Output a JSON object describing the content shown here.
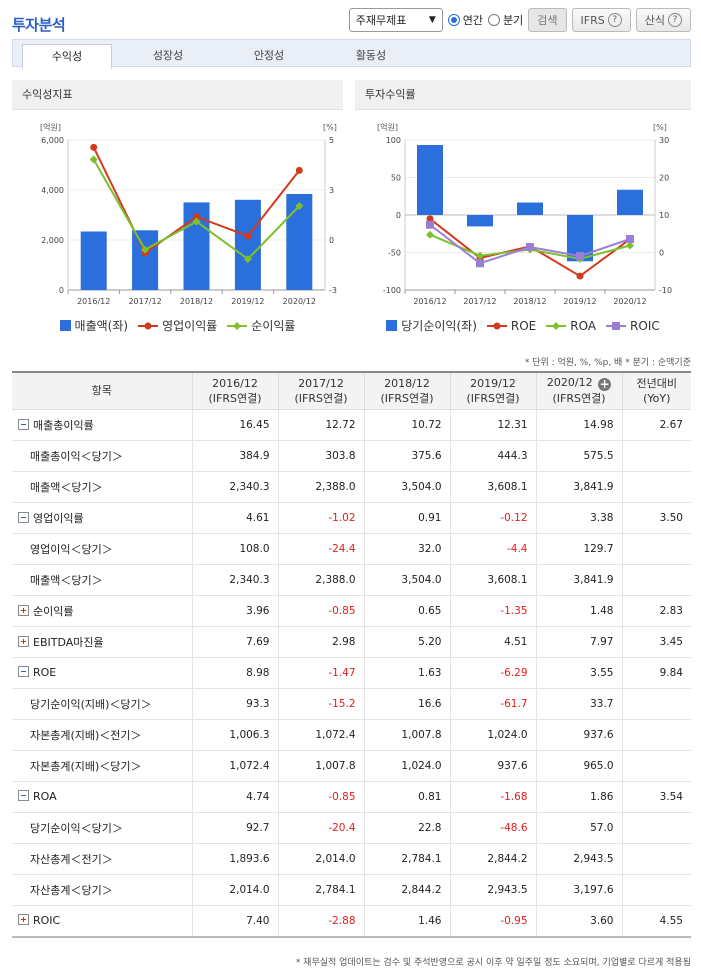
{
  "header": {
    "title": "투자분석",
    "select_value": "주재무제표",
    "radio_annual": "연간",
    "radio_quarter": "분기",
    "search_label": "검색",
    "ifrs_label": "IFRS",
    "formula_label": "산식"
  },
  "tabs": [
    {
      "label": "수익성"
    },
    {
      "label": "성장성"
    },
    {
      "label": "안정성"
    },
    {
      "label": "활동성"
    }
  ],
  "chart_left": {
    "title": "수익성지표",
    "left_unit": "[억원]",
    "right_unit": "[%]",
    "left_ticks": [
      "6,000",
      "4,000",
      "2,000",
      "0"
    ],
    "right_ticks": [
      "5",
      "3",
      "0",
      "-3"
    ],
    "categories": [
      "2016/12",
      "2017/12",
      "2018/12",
      "2019/12",
      "2020/12"
    ],
    "legend": [
      "매출액(좌)",
      "영업이익률",
      "순이익률"
    ],
    "colors": {
      "bar": "#2a6fdc",
      "op": "#d23a1e",
      "net": "#7cc12c"
    }
  },
  "chart_right": {
    "title": "투자수익률",
    "left_unit": "[억원]",
    "right_unit": "[%]",
    "left_ticks": [
      "100",
      "50",
      "0",
      "-50",
      "-100"
    ],
    "right_ticks": [
      "30",
      "20",
      "10",
      "0",
      "-10"
    ],
    "categories": [
      "2016/12",
      "2017/12",
      "2018/12",
      "2019/12",
      "2020/12"
    ],
    "legend": [
      "당기순이익(좌)",
      "ROE",
      "ROA",
      "ROIC"
    ],
    "colors": {
      "bar": "#2a6fdc",
      "roe": "#d23a1e",
      "roa": "#7cc12c",
      "roic": "#9b7fd6"
    }
  },
  "chart_data": [
    {
      "type": "bar",
      "title": "수익성지표",
      "categories": [
        "2016/12",
        "2017/12",
        "2018/12",
        "2019/12",
        "2020/12"
      ],
      "ylim": [
        0,
        6000
      ],
      "y2lim": [
        -3,
        5
      ],
      "series": [
        {
          "name": "매출액(좌)",
          "type": "bar",
          "axis": "left",
          "values": [
            2340.3,
            2388.0,
            3504.0,
            3608.1,
            3841.9
          ]
        },
        {
          "name": "영업이익률",
          "type": "line",
          "axis": "right",
          "values": [
            4.61,
            -1.02,
            0.91,
            -0.12,
            3.38
          ]
        },
        {
          "name": "순이익률",
          "type": "line",
          "axis": "right",
          "values": [
            3.96,
            -0.85,
            0.65,
            -1.35,
            1.48
          ]
        }
      ]
    },
    {
      "type": "bar",
      "title": "투자수익률",
      "categories": [
        "2016/12",
        "2017/12",
        "2018/12",
        "2019/12",
        "2020/12"
      ],
      "ylim": [
        -100,
        100
      ],
      "y2lim": [
        -10,
        30
      ],
      "series": [
        {
          "name": "당기순이익(좌)",
          "type": "bar",
          "axis": "left",
          "values": [
            93.3,
            -15.2,
            16.6,
            -61.7,
            33.7
          ]
        },
        {
          "name": "ROE",
          "type": "line",
          "axis": "right",
          "values": [
            8.98,
            -1.47,
            1.63,
            -6.29,
            3.55
          ]
        },
        {
          "name": "ROA",
          "type": "line",
          "axis": "right",
          "values": [
            4.74,
            -0.85,
            0.81,
            -1.68,
            1.86
          ]
        },
        {
          "name": "ROIC",
          "type": "line",
          "axis": "right",
          "values": [
            7.4,
            -2.88,
            1.46,
            -0.95,
            3.6
          ]
        }
      ]
    }
  ],
  "unit_note": "* 단위 : 억원, %, %p, 배   * 분기 : 순액기준",
  "table": {
    "col_item": "항목",
    "cols": [
      {
        "year": "2016/12",
        "sub": "(IFRS연결)"
      },
      {
        "year": "2017/12",
        "sub": "(IFRS연결)"
      },
      {
        "year": "2018/12",
        "sub": "(IFRS연결)"
      },
      {
        "year": "2019/12",
        "sub": "(IFRS연결)"
      },
      {
        "year": "2020/12",
        "sub": "(IFRS연결)"
      }
    ],
    "col_yoy": "전년대비",
    "col_yoy_sub": "(YoY)",
    "rows": [
      {
        "label": "매출총이익률",
        "toggle": "minus",
        "vals": [
          "16.45",
          "12.72",
          "10.72",
          "12.31",
          "14.98"
        ],
        "yoy": "2.67"
      },
      {
        "label": "매출총이익＜당기＞",
        "sub": true,
        "vals": [
          "384.9",
          "303.8",
          "375.6",
          "444.3",
          "575.5"
        ],
        "yoy": ""
      },
      {
        "label": "매출액＜당기＞",
        "sub": true,
        "vals": [
          "2,340.3",
          "2,388.0",
          "3,504.0",
          "3,608.1",
          "3,841.9"
        ],
        "yoy": ""
      },
      {
        "label": "영업이익률",
        "toggle": "minus",
        "vals": [
          "4.61",
          "-1.02",
          "0.91",
          "-0.12",
          "3.38"
        ],
        "yoy": "3.50"
      },
      {
        "label": "영업이익＜당기＞",
        "sub": true,
        "vals": [
          "108.0",
          "-24.4",
          "32.0",
          "-4.4",
          "129.7"
        ],
        "yoy": ""
      },
      {
        "label": "매출액＜당기＞",
        "sub": true,
        "vals": [
          "2,340.3",
          "2,388.0",
          "3,504.0",
          "3,608.1",
          "3,841.9"
        ],
        "yoy": ""
      },
      {
        "label": "순이익률",
        "toggle": "plus",
        "vals": [
          "3.96",
          "-0.85",
          "0.65",
          "-1.35",
          "1.48"
        ],
        "yoy": "2.83"
      },
      {
        "label": "EBITDA마진율",
        "toggle": "plus",
        "vals": [
          "7.69",
          "2.98",
          "5.20",
          "4.51",
          "7.97"
        ],
        "yoy": "3.45"
      },
      {
        "label": "ROE",
        "toggle": "minus",
        "vals": [
          "8.98",
          "-1.47",
          "1.63",
          "-6.29",
          "3.55"
        ],
        "yoy": "9.84"
      },
      {
        "label": "당기순이익(지배)＜당기＞",
        "sub": true,
        "vals": [
          "93.3",
          "-15.2",
          "16.6",
          "-61.7",
          "33.7"
        ],
        "yoy": ""
      },
      {
        "label": "자본총계(지배)＜전기＞",
        "sub": true,
        "vals": [
          "1,006.3",
          "1,072.4",
          "1,007.8",
          "1,024.0",
          "937.6"
        ],
        "yoy": ""
      },
      {
        "label": "자본총계(지배)＜당기＞",
        "sub": true,
        "vals": [
          "1,072.4",
          "1,007.8",
          "1,024.0",
          "937.6",
          "965.0"
        ],
        "yoy": ""
      },
      {
        "label": "ROA",
        "toggle": "minus",
        "vals": [
          "4.74",
          "-0.85",
          "0.81",
          "-1.68",
          "1.86"
        ],
        "yoy": "3.54"
      },
      {
        "label": "당기순이익＜당기＞",
        "sub": true,
        "vals": [
          "92.7",
          "-20.4",
          "22.8",
          "-48.6",
          "57.0"
        ],
        "yoy": ""
      },
      {
        "label": "자산총계＜전기＞",
        "sub": true,
        "vals": [
          "1,893.6",
          "2,014.0",
          "2,784.1",
          "2,844.2",
          "2,943.5"
        ],
        "yoy": ""
      },
      {
        "label": "자산총계＜당기＞",
        "sub": true,
        "vals": [
          "2,014.0",
          "2,784.1",
          "2,844.2",
          "2,943.5",
          "3,197.6"
        ],
        "yoy": ""
      },
      {
        "label": "ROIC",
        "toggle": "plus",
        "vals": [
          "7.40",
          "-2.88",
          "1.46",
          "-0.95",
          "3.60"
        ],
        "yoy": "4.55"
      }
    ]
  },
  "bottom_note": "* 재무실적 업데이트는 검수 및 주석반영으로 공시 이후 약 일주일 정도 소요되며, 기업별로 다르게 적용됨"
}
